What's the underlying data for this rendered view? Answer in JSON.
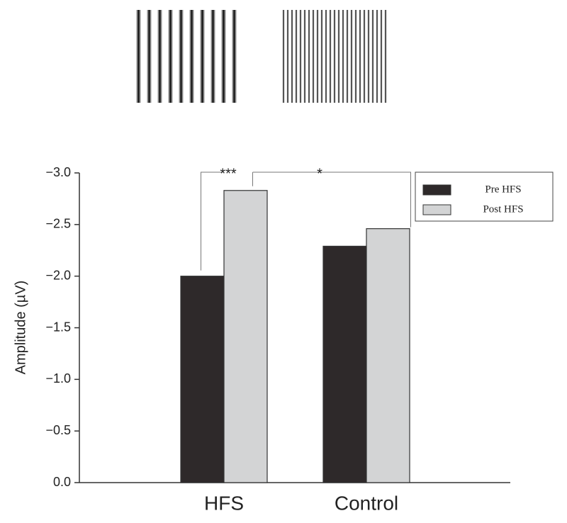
{
  "chart_data": {
    "type": "bar",
    "ylabel": "Amplitude (µV)",
    "categories": [
      "HFS",
      "Control"
    ],
    "series": [
      {
        "name": "Pre HFS",
        "color": "#2e292a",
        "values": [
          -2.0,
          -2.29
        ]
      },
      {
        "name": "Post HFS",
        "color": "#d3d4d5",
        "values": [
          -2.83,
          -2.46
        ]
      }
    ],
    "ylim": [
      0,
      -3
    ],
    "yticks": [
      {
        "value": 0,
        "label": "0.0"
      },
      {
        "value": -0.5,
        "label": "−0.5"
      },
      {
        "value": -1,
        "label": "−1.0"
      },
      {
        "value": -1.5,
        "label": "−1.5"
      },
      {
        "value": -2,
        "label": "−2.0"
      },
      {
        "value": -2.5,
        "label": "−2.5"
      },
      {
        "value": -3,
        "label": "−3.0"
      }
    ],
    "legend": "upper right",
    "annotations": [
      "***",
      "*"
    ]
  }
}
